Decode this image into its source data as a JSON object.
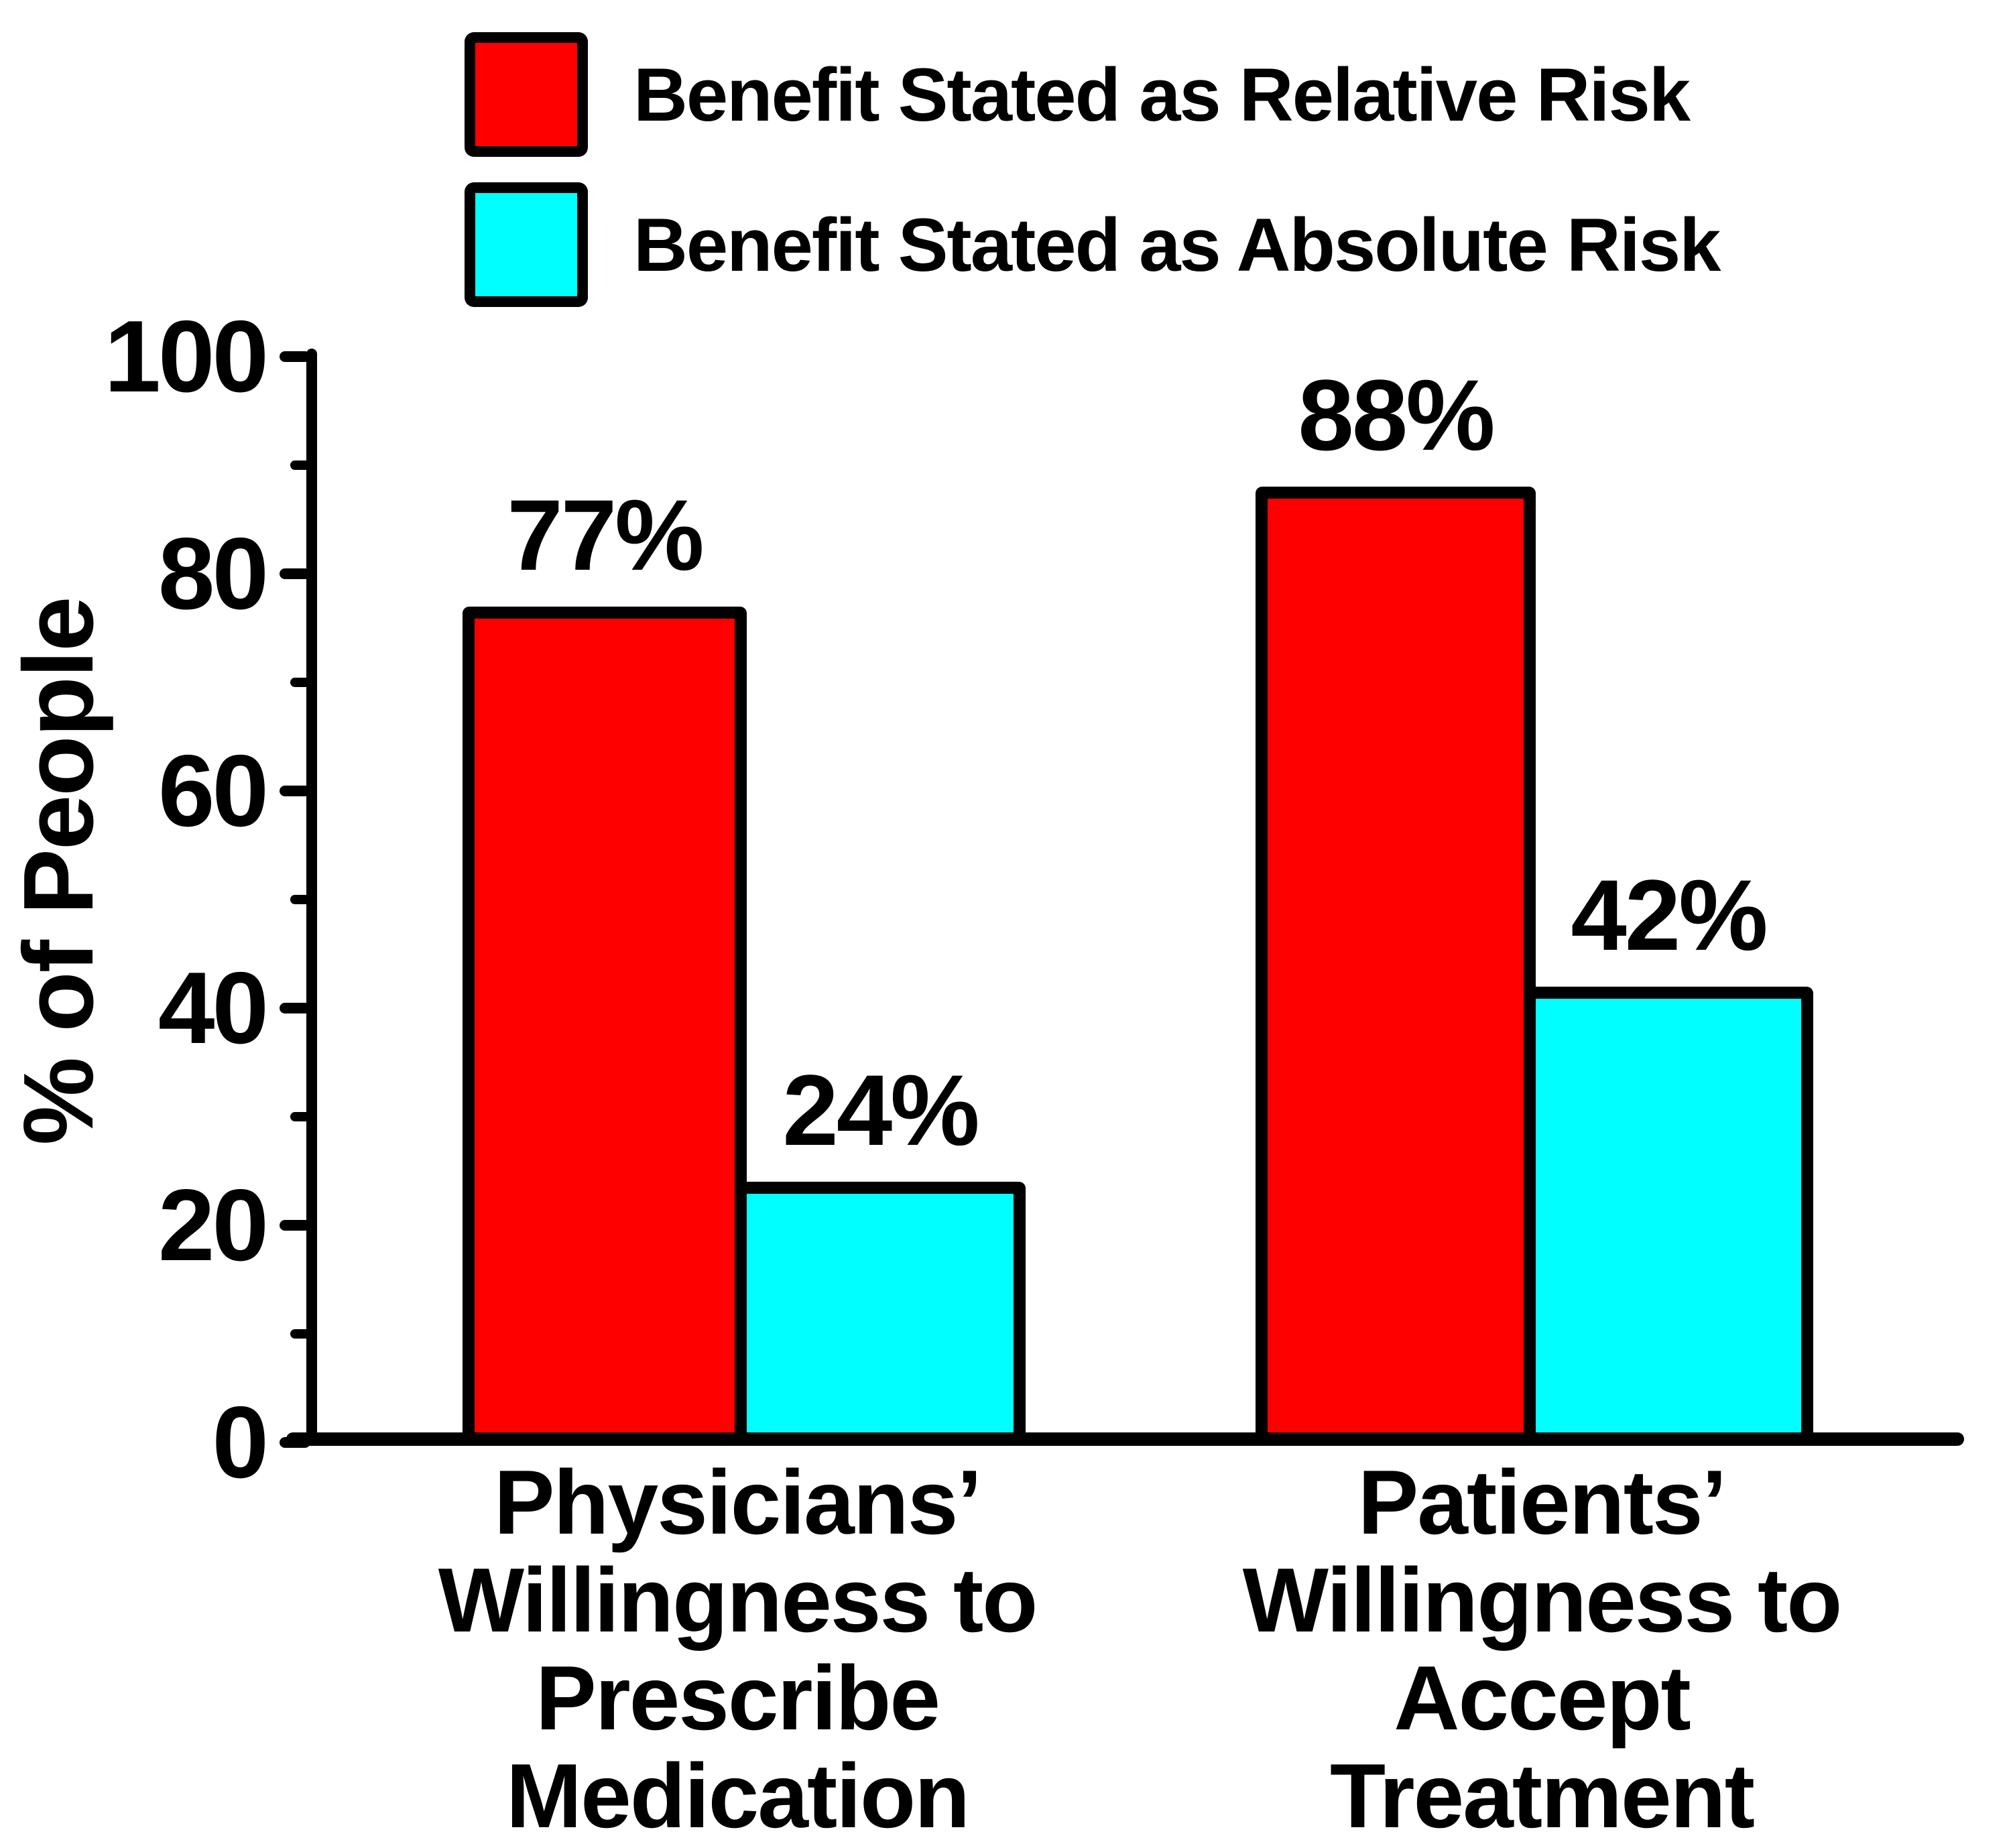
{
  "chart_data": {
    "type": "bar",
    "title": "",
    "xlabel": "",
    "ylabel": "% of People",
    "ylim": [
      0,
      100
    ],
    "yticks_major": [
      0,
      20,
      40,
      60,
      80,
      100
    ],
    "yticks_minor": [
      10,
      30,
      50,
      70,
      90
    ],
    "grid": false,
    "legend_position": "top-left",
    "categories": [
      {
        "label": "Physicians’ Willingness to Prescribe Medication",
        "lines": [
          "Physicians’",
          "Willingness to",
          "Prescribe",
          "Medication"
        ]
      },
      {
        "label": "Patients’ Willingness to Accept Treatment",
        "lines": [
          "Patients’",
          "Willingness to",
          "Accept",
          "Treatment"
        ]
      }
    ],
    "series": [
      {
        "name": "Benefit Stated as Relative Risk",
        "color": "#ff0000",
        "values": [
          77,
          88
        ],
        "value_labels": [
          "77%",
          "88%"
        ]
      },
      {
        "name": "Benefit Stated as Absolute Risk",
        "color": "#00ffff",
        "values": [
          24,
          42
        ],
        "value_labels": [
          "24%",
          "42%"
        ]
      }
    ],
    "colors": {
      "bar_outline": "#000000",
      "axis": "#000000",
      "background": "#ffffff"
    }
  }
}
